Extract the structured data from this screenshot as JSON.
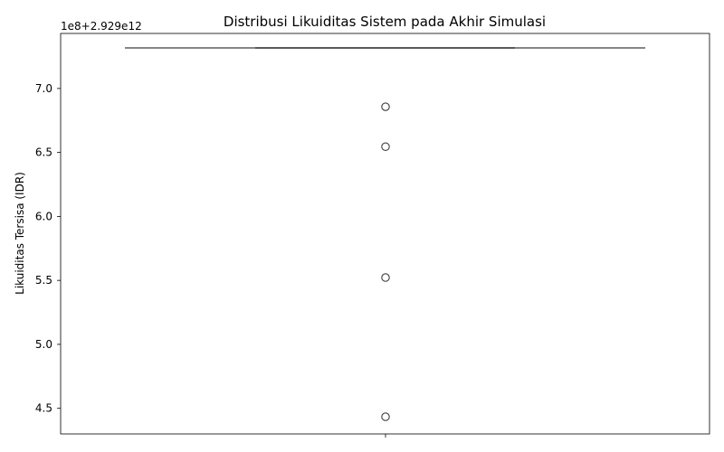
{
  "chart_data": {
    "type": "box",
    "title": "Distribusi Likuiditas Sistem pada Akhir Simulasi",
    "xlabel": "",
    "ylabel": "Likuiditas Tersisa (IDR)",
    "offset_label": "1e8+2.929e12",
    "ylim": [
      4.3,
      7.43
    ],
    "yticks": [
      4.5,
      5.0,
      5.5,
      6.0,
      6.5,
      7.0
    ],
    "ytick_labels": [
      "4.5",
      "5.0",
      "5.5",
      "6.0",
      "6.5",
      "7.0"
    ],
    "grid": false,
    "box": {
      "q1": 7.317,
      "median": 7.317,
      "q3": 7.317,
      "whisker_low": 7.317,
      "whisker_high": 7.317
    },
    "outliers": [
      6.857,
      6.545,
      5.522,
      4.434
    ],
    "colors": {
      "line": "#3f3f3f",
      "axis": "#000000"
    }
  }
}
